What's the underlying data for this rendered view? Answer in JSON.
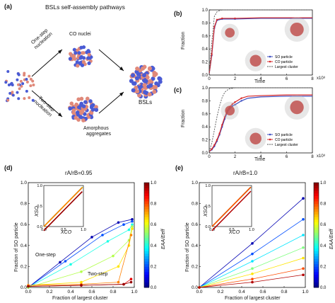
{
  "panel_a": {
    "label": "(a)",
    "title": "BSLs self-assembly pathways",
    "co_nuclei": "CO nuclei",
    "one_step": "One-step",
    "nucleation_1": "nucleation",
    "two_step": "Two-step",
    "nucleation_2": "nucleation",
    "amorphous": "Amorphous",
    "aggregates": "aggregates",
    "bsls": "BSLs"
  },
  "panel_b": {
    "label": "(b)",
    "ylabel": "Fraction",
    "xlabel": "Time",
    "xexp": "x10⁸",
    "legend": [
      "SO particle",
      "CO particle",
      "Largest cluster"
    ]
  },
  "panel_c": {
    "label": "(c)",
    "ylabel": "Fraction",
    "xlabel": "Time",
    "xexp": "x10⁸",
    "legend": [
      "SO particle",
      "CO particle",
      "Largest cluster"
    ]
  },
  "panel_d": {
    "label": "(d)",
    "title": "rA/rB=0.95",
    "ylabel": "Fraction of SO particle",
    "xlabel": "Fraction of largest cluster",
    "inset_x": "XCO",
    "inset_y": "XSO",
    "one_step": "One-step",
    "two_step": "Two-step",
    "cbar_label": "EAA/Eeff"
  },
  "panel_e": {
    "label": "(e)",
    "title": "rA/rB=1.0",
    "ylabel": "Fraction of SO particle",
    "xlabel": "Fraction of largest cluster",
    "inset_x": "XCO",
    "inset_y": "XSO",
    "cbar_label": "EAA/Eeff"
  },
  "colors": {
    "so": "#3b4cc0",
    "co": "#d62728",
    "cluster": "#555555",
    "particle_blue": "#4a5bd4",
    "particle_pink": "#e0897a"
  },
  "chart_data": [
    {
      "id": "b",
      "type": "line",
      "xlabel": "Time",
      "ylabel": "Fraction",
      "xlim": [
        0,
        8
      ],
      "ylim": [
        0,
        1.0
      ],
      "x_ticks": [
        0,
        2,
        4,
        6,
        8
      ],
      "y_ticks": [
        0.0,
        0.2,
        0.4,
        0.6,
        0.8,
        1.0
      ],
      "series": [
        {
          "name": "SO particle",
          "x": [
            0,
            0.2,
            0.4,
            0.6,
            1,
            2,
            4,
            6,
            8
          ],
          "y": [
            0.02,
            0.3,
            0.72,
            0.84,
            0.86,
            0.86,
            0.87,
            0.87,
            0.87
          ]
        },
        {
          "name": "CO particle",
          "x": [
            0,
            0.2,
            0.4,
            0.6,
            1,
            2,
            4,
            6,
            8
          ],
          "y": [
            0.02,
            0.32,
            0.74,
            0.85,
            0.87,
            0.87,
            0.88,
            0.88,
            0.88
          ]
        },
        {
          "name": "Largest cluster",
          "x": [
            0,
            0.2,
            0.4,
            0.6,
            0.8,
            1,
            2,
            4,
            8
          ],
          "y": [
            0.02,
            0.5,
            0.9,
            0.97,
            0.99,
            1.0,
            1.0,
            1.0,
            1.0
          ]
        }
      ]
    },
    {
      "id": "c",
      "type": "line",
      "xlabel": "Time",
      "ylabel": "Fraction",
      "xlim": [
        0,
        8
      ],
      "ylim": [
        0,
        1.0
      ],
      "x_ticks": [
        0,
        2,
        4,
        6,
        8
      ],
      "y_ticks": [
        0.0,
        0.2,
        0.4,
        0.6,
        0.8,
        1.0
      ],
      "series": [
        {
          "name": "SO particle",
          "x": [
            0,
            0.2,
            0.4,
            0.6,
            0.8,
            1.0,
            1.2,
            1.4,
            1.6,
            1.8,
            2.0,
            2.5,
            3,
            4,
            6,
            8
          ],
          "y": [
            0.02,
            0.05,
            0.1,
            0.18,
            0.28,
            0.4,
            0.52,
            0.62,
            0.68,
            0.72,
            0.74,
            0.8,
            0.84,
            0.86,
            0.87,
            0.87
          ]
        },
        {
          "name": "CO particle",
          "x": [
            0,
            0.2,
            0.4,
            0.6,
            0.8,
            1.0,
            1.2,
            1.4,
            1.6,
            1.8,
            2.0,
            2.5,
            3,
            4,
            6,
            8
          ],
          "y": [
            0.02,
            0.06,
            0.12,
            0.2,
            0.3,
            0.43,
            0.55,
            0.65,
            0.71,
            0.75,
            0.78,
            0.84,
            0.87,
            0.88,
            0.89,
            0.89
          ]
        },
        {
          "name": "Largest cluster",
          "x": [
            0,
            0.2,
            0.4,
            0.6,
            0.8,
            1.0,
            1.2,
            1.5,
            2,
            3,
            8
          ],
          "y": [
            0.02,
            0.15,
            0.35,
            0.55,
            0.72,
            0.85,
            0.93,
            0.98,
            1.0,
            1.0,
            1.0
          ]
        }
      ]
    },
    {
      "id": "d",
      "type": "scatter",
      "xlabel": "Fraction of largest cluster",
      "ylabel": "Fraction of SO particle",
      "xlim": [
        0,
        1.0
      ],
      "ylim": [
        0,
        1.0
      ],
      "x_ticks": [
        0.0,
        0.2,
        0.4,
        0.6,
        0.8,
        1.0
      ],
      "y_ticks": [
        0.0,
        0.2,
        0.4,
        0.6,
        0.8,
        1.0
      ],
      "colorbar": {
        "label": "EAA/Eeff",
        "range": [
          0,
          1.0
        ],
        "ticks": [
          0.0,
          0.2,
          0.4,
          0.6,
          0.8,
          1.0
        ]
      },
      "series": [
        {
          "c": 0.05,
          "x": [
            0,
            0.3,
            0.6,
            0.85,
            0.98
          ],
          "y": [
            0,
            0.24,
            0.48,
            0.62,
            0.65
          ]
        },
        {
          "c": 0.2,
          "x": [
            0,
            0.35,
            0.7,
            0.9,
            0.98
          ],
          "y": [
            0,
            0.25,
            0.5,
            0.6,
            0.63
          ]
        },
        {
          "c": 0.4,
          "x": [
            0,
            0.4,
            0.75,
            0.95,
            0.98
          ],
          "y": [
            0,
            0.22,
            0.44,
            0.55,
            0.6
          ]
        },
        {
          "c": 0.55,
          "x": [
            0,
            0.5,
            0.8,
            0.95,
            0.98
          ],
          "y": [
            0,
            0.15,
            0.3,
            0.45,
            0.58
          ]
        },
        {
          "c": 0.65,
          "x": [
            0,
            0.5,
            0.85,
            0.95,
            0.98
          ],
          "y": [
            0.02,
            0.05,
            0.2,
            0.4,
            0.56
          ]
        },
        {
          "c": 0.75,
          "x": [
            0,
            0.5,
            0.85,
            0.97
          ],
          "y": [
            0.02,
            0.03,
            0.05,
            0.5
          ]
        },
        {
          "c": 0.9,
          "x": [
            0,
            0.5,
            0.9,
            0.97
          ],
          "y": [
            0.01,
            0.02,
            0.03,
            0.08
          ]
        },
        {
          "c": 0.98,
          "x": [
            0,
            0.5,
            0.9,
            0.97
          ],
          "y": [
            0.01,
            0.02,
            0.03,
            0.05
          ]
        }
      ]
    },
    {
      "id": "e",
      "type": "scatter",
      "xlabel": "Fraction of largest cluster",
      "ylabel": "Fraction of SO particle",
      "xlim": [
        0,
        1.0
      ],
      "ylim": [
        0,
        1.0
      ],
      "x_ticks": [
        0.0,
        0.2,
        0.4,
        0.6,
        0.8,
        1.0
      ],
      "y_ticks": [
        0.0,
        0.2,
        0.4,
        0.6,
        0.8,
        1.0
      ],
      "colorbar": {
        "label": "EAA/Eeff",
        "range": [
          0,
          1.0
        ],
        "ticks": [
          0.0,
          0.2,
          0.4,
          0.6,
          0.8,
          1.0
        ]
      },
      "series": [
        {
          "c": 0.05,
          "x": [
            0,
            0.5,
            0.98
          ],
          "y": [
            0,
            0.42,
            0.85
          ]
        },
        {
          "c": 0.2,
          "x": [
            0,
            0.5,
            0.98
          ],
          "y": [
            0,
            0.32,
            0.65
          ]
        },
        {
          "c": 0.35,
          "x": [
            0,
            0.5,
            0.98
          ],
          "y": [
            0,
            0.25,
            0.5
          ]
        },
        {
          "c": 0.5,
          "x": [
            0,
            0.5,
            0.98
          ],
          "y": [
            0,
            0.18,
            0.38
          ]
        },
        {
          "c": 0.65,
          "x": [
            0,
            0.5,
            0.98
          ],
          "y": [
            0,
            0.13,
            0.28
          ]
        },
        {
          "c": 0.8,
          "x": [
            0,
            0.5,
            0.98
          ],
          "y": [
            0,
            0.08,
            0.18
          ]
        },
        {
          "c": 0.95,
          "x": [
            0,
            0.5,
            0.98
          ],
          "y": [
            0,
            0.05,
            0.12
          ]
        }
      ]
    }
  ]
}
